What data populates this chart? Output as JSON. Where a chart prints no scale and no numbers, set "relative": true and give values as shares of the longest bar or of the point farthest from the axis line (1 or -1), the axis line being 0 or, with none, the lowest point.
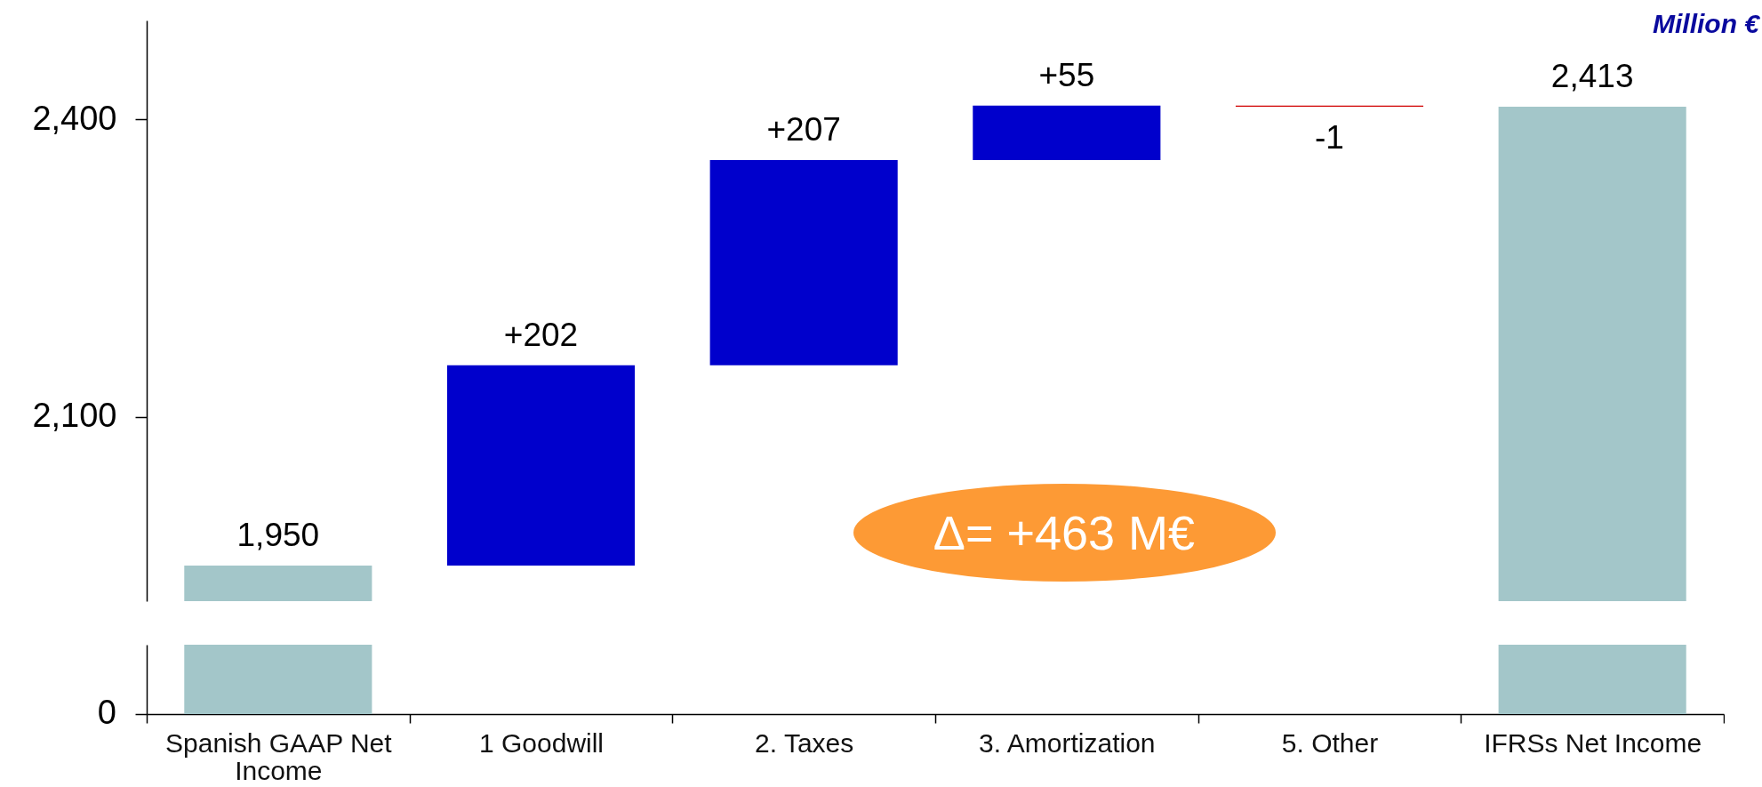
{
  "chart_data": [
    {
      "type": "bar",
      "categories": [
        "Spanish GAAP Net Income",
        "1 Goodwill",
        "2. Taxes",
        "3. Amortization",
        "5. Other",
        "IFRSs Net Income"
      ],
      "values": [
        1950,
        202,
        207,
        55,
        -1,
        2413
      ],
      "base": [
        0,
        1950,
        2152,
        2359,
        2414,
        0
      ],
      "colors": [
        "#a3c6c9",
        "#0000cc",
        "#0000cc",
        "#0000cc",
        "#d00000",
        "#a3c6c9"
      ],
      "value_labels": [
        "1,950",
        "+202",
        "+207",
        "+55",
        "-1",
        "2,413"
      ],
      "ylim": [
        1914,
        2500
      ],
      "yticks": [
        {
          "value": 2100,
          "label": "2,100"
        },
        {
          "value": 2400,
          "label": "2,400"
        }
      ],
      "tick_labels": "y",
      "annotations": [
        "Million €",
        "Δ= +463 M€"
      ]
    },
    {
      "type": "bar",
      "relative": true,
      "categories": [
        "Spanish GAAP Net Income",
        "1 Goodwill",
        "2. Taxes",
        "3. Amortization",
        "5. Other",
        "IFRSs Net Income"
      ],
      "values": [
        1,
        null,
        null,
        null,
        null,
        1
      ],
      "color": "#a3c6c9",
      "annotations": [
        "0"
      ]
    }
  ]
}
